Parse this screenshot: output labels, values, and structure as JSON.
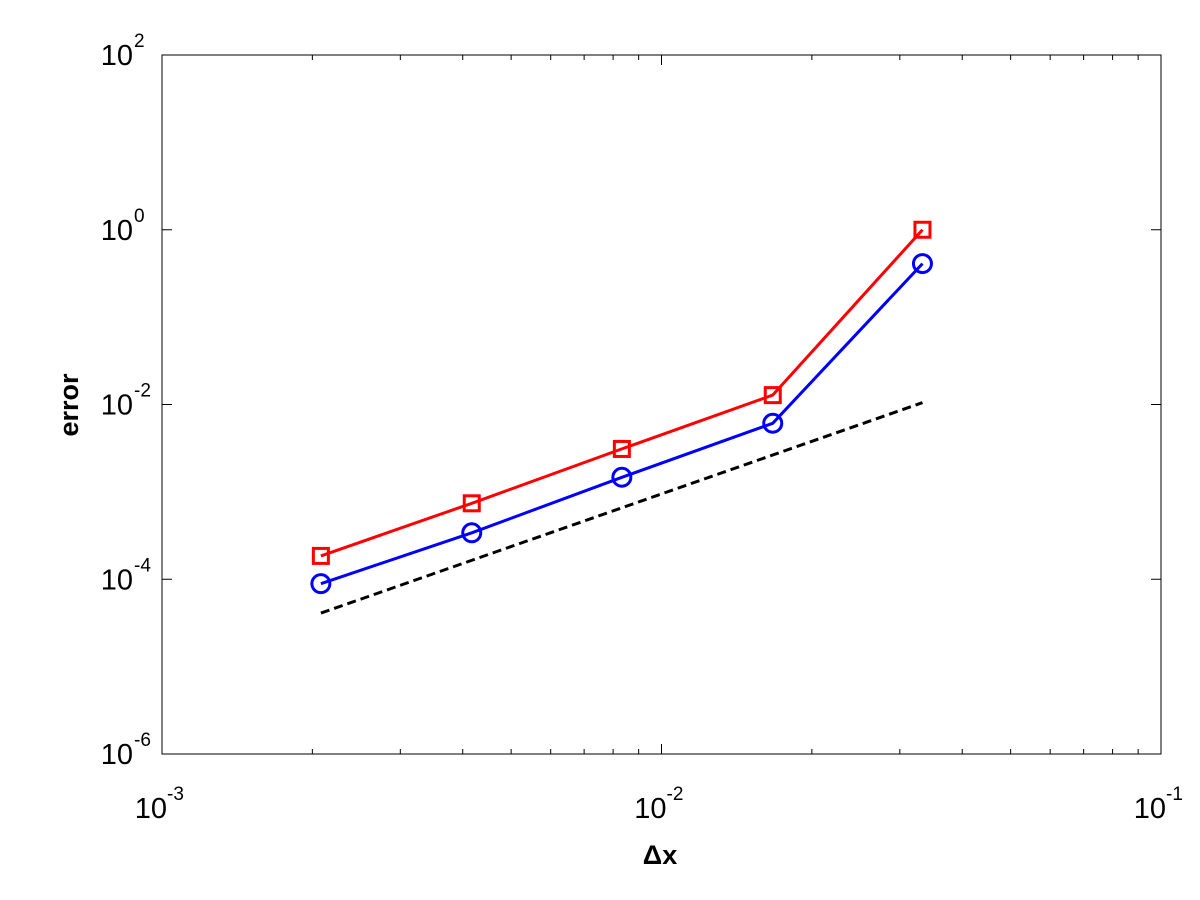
{
  "chart_data": {
    "type": "line",
    "xscale": "log",
    "yscale": "log",
    "xlim": [
      0.001,
      0.1
    ],
    "ylim": [
      1e-06,
      100
    ],
    "xlabel": "Δx",
    "ylabel": "error",
    "title": "",
    "grid": false,
    "legend": "none",
    "x_ticks": [
      {
        "value": 0.001,
        "base": "10",
        "exp": "-3"
      },
      {
        "value": 0.01,
        "base": "10",
        "exp": "-2"
      },
      {
        "value": 0.1,
        "base": "10",
        "exp": "-1"
      }
    ],
    "y_ticks": [
      {
        "value": 1e-06,
        "base": "10",
        "exp": "-6"
      },
      {
        "value": 0.0001,
        "base": "10",
        "exp": "-4"
      },
      {
        "value": 0.01,
        "base": "10",
        "exp": "-2"
      },
      {
        "value": 1,
        "base": "10",
        "exp": "0"
      },
      {
        "value": 100,
        "base": "10",
        "exp": "2"
      }
    ],
    "series": [
      {
        "color": "#ff0000",
        "marker": "square",
        "line": "solid",
        "x": [
          0.00208,
          0.00417,
          0.00833,
          0.0167,
          0.0333
        ],
        "y": [
          0.000185,
          0.00074,
          0.0031,
          0.0128,
          1.0
        ]
      },
      {
        "color": "#0000ff",
        "marker": "circle",
        "line": "solid",
        "x": [
          0.00208,
          0.00417,
          0.00833,
          0.0167,
          0.0333
        ],
        "y": [
          8.9e-05,
          0.00034,
          0.00147,
          0.0061,
          0.41
        ]
      },
      {
        "color": "#000000",
        "marker": "none",
        "line": "dashed",
        "x": [
          0.00208,
          0.0333
        ],
        "y": [
          4.1e-05,
          0.0105
        ]
      }
    ]
  }
}
